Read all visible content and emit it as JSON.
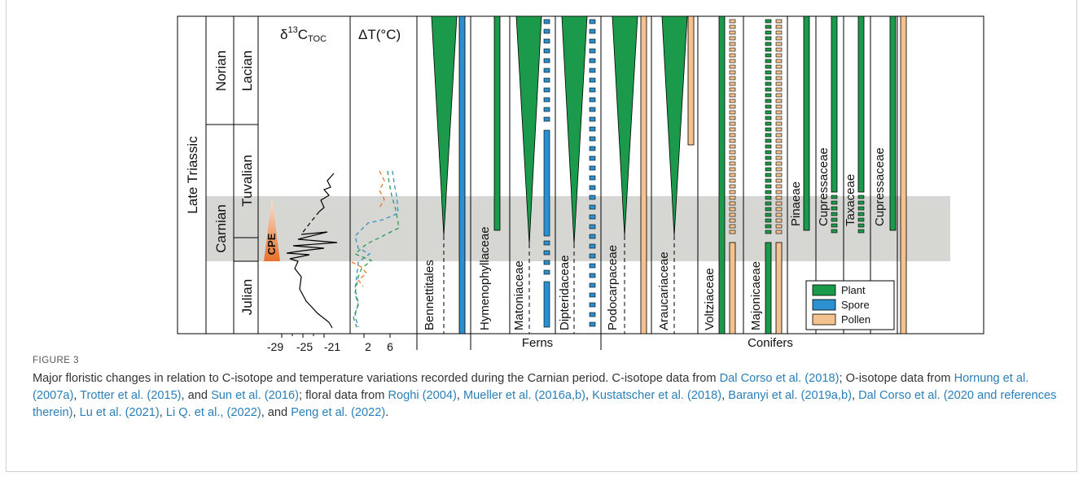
{
  "figure": {
    "label": "FIGURE 3",
    "caption": [
      {
        "t": "Major floristic changes in relation to C-isotope and temperature variations recorded during the Carnian period. C-isotope data from "
      },
      {
        "t": "Dal Corso et al. (2018)",
        "ref": true
      },
      {
        "t": "; O-isotope data from "
      },
      {
        "t": "Hornung et al. (2007a)",
        "ref": true
      },
      {
        "t": ", "
      },
      {
        "t": "Trotter et al. (2015)",
        "ref": true
      },
      {
        "t": ", and "
      },
      {
        "t": "Sun et al. (2016)",
        "ref": true
      },
      {
        "t": "; floral data from "
      },
      {
        "t": "Roghi (2004)",
        "ref": true
      },
      {
        "t": ", "
      },
      {
        "t": "Mueller et al. (2016a,b)",
        "ref": true
      },
      {
        "t": ", "
      },
      {
        "t": "Kustatscher et al. (2018)",
        "ref": true
      },
      {
        "t": ", "
      },
      {
        "t": "Baranyi et al. (2019a,b)",
        "ref": true
      },
      {
        "t": ", "
      },
      {
        "t": "Dal Corso et al. (2020 and references therein)",
        "ref": true
      },
      {
        "t": ", "
      },
      {
        "t": "Lu et al. (2021)",
        "ref": true
      },
      {
        "t": ", "
      },
      {
        "t": "Li Q. et al., (2022)",
        "ref": true
      },
      {
        "t": ", and "
      },
      {
        "t": "Peng et al. (2022)",
        "ref": true
      },
      {
        "t": "."
      }
    ]
  },
  "stratigraphy": {
    "epoch": "Late Triassic",
    "stages": [
      "Norian",
      "Carnian"
    ],
    "substages": [
      "Lacian",
      "Tuvalian",
      "Julian"
    ],
    "event": "CPE"
  },
  "headers": {
    "d13c_delta": "δ",
    "d13c_sup": "13",
    "d13c_main": "C",
    "d13c_sub": "TOC",
    "dt": "ΔT(°C)"
  },
  "axes": {
    "d13c_ticks": [
      "-29",
      "-25",
      "-21"
    ],
    "dt_ticks": [
      "2",
      "6"
    ]
  },
  "taxa": [
    "Bennettitales",
    "Hymenophyllaceae",
    "Matoniaceae",
    "Dipteridaceae",
    "Podocarpaceae",
    "Araucariaceae",
    "Voltziaceae",
    "Majonicaeae",
    "Pinaeae",
    "Cupressaceae",
    "Taxaceae",
    "Cupressaceae"
  ],
  "groups": [
    "Ferns",
    "Conifers"
  ],
  "legend": [
    {
      "label": "Plant",
      "color": "#1a9a4a"
    },
    {
      "label": "Spore",
      "color": "#2c8fd0"
    },
    {
      "label": "Pollen",
      "color": "#f4c28e"
    }
  ],
  "colors": {
    "plant": "#1a9a4a",
    "spore": "#2c8fd0",
    "pollen": "#f4c28e",
    "cpe_band": "#d6d6d2",
    "cpe_triangle": "#e8712a",
    "dt_blue": "#3a8fc8",
    "dt_green": "#2e9a55",
    "dt_orange": "#e8772a"
  },
  "chart_data": {
    "type": "line",
    "series": [],
    "x": []
  }
}
